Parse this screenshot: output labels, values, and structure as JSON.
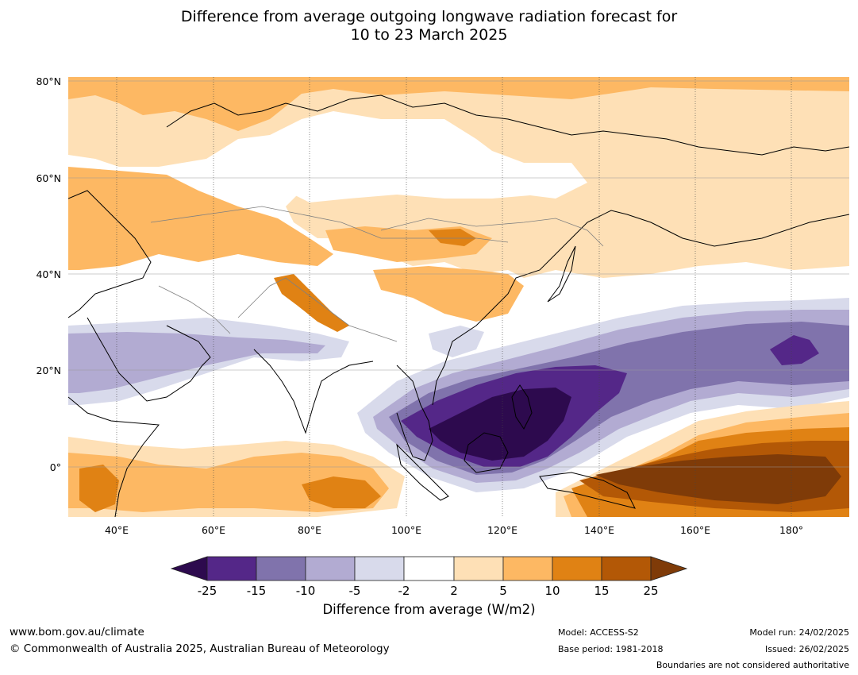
{
  "title": {
    "line1": "Difference from average outgoing longwave radiation forecast for",
    "line2": "10 to 23 March 2025"
  },
  "map": {
    "lat_labels": [
      "80°N",
      "60°N",
      "40°N",
      "20°N",
      "0°"
    ],
    "lon_labels": [
      "40°E",
      "60°E",
      "80°E",
      "100°E",
      "120°E",
      "140°E",
      "160°E",
      "180°"
    ],
    "land_outline_color": "#000000",
    "boundary_color": "#808080"
  },
  "colorbar": {
    "tick_labels": [
      "-25",
      "-15",
      "-10",
      "-5",
      "-2",
      "2",
      "5",
      "10",
      "15",
      "25"
    ],
    "colors": {
      "below_-25": "#2d0a4e",
      "-25_to_-15": "#542788",
      "-15_to_-10": "#8073ac",
      "-10_to_-5": "#b2abd2",
      "-5_to_-2": "#d8daeb",
      "-2_to_2": "#ffffff",
      "2_to_5": "#fee0b6",
      "5_to_10": "#fdb863",
      "10_to_15": "#e08214",
      "15_to_25": "#b35806",
      "above_25": "#7f3b08"
    },
    "label": "Difference from average (W/m2)"
  },
  "footer": {
    "website": "www.bom.gov.au/climate",
    "copyright": "© Commonwealth of Australia 2025, Australian Bureau of Meteorology",
    "model": "Model: ACCESS-S2",
    "base_period": "Base period: 1981-2018",
    "model_run": "Model run: 24/02/2025",
    "issued": "Issued: 26/02/2025",
    "disclaimer": "Boundaries are not considered authoritative"
  }
}
